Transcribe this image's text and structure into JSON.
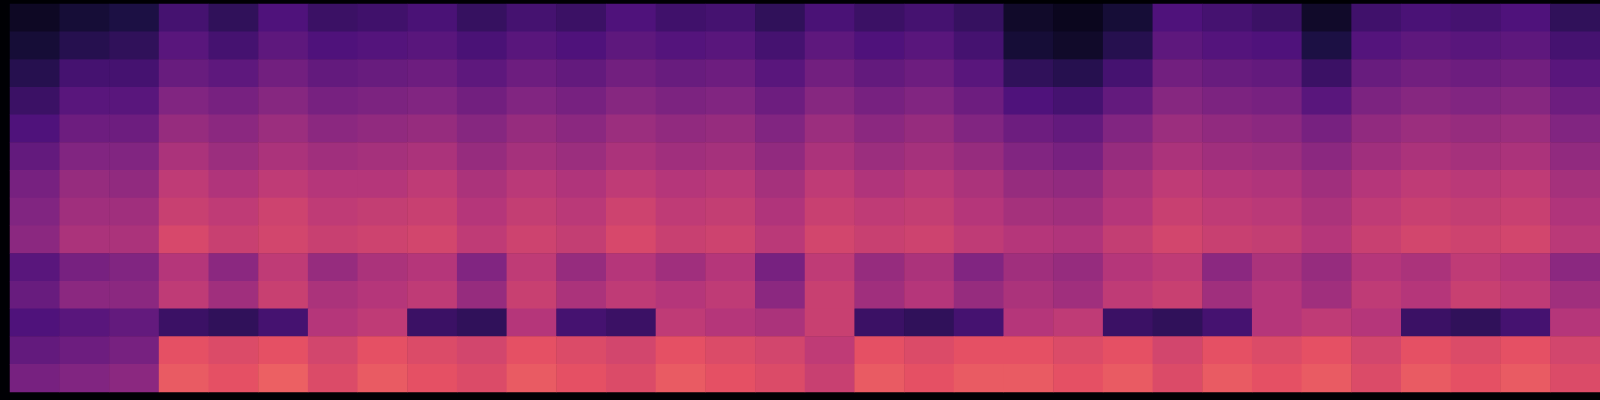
{
  "chart_data": {
    "type": "heatmap",
    "tick_labels": false,
    "color_range": [
      -80,
      0
    ],
    "cells": [
      [
        -75,
        -72,
        -70,
        -62,
        -66,
        -60,
        -64,
        -63,
        -61,
        -65,
        -62,
        -64,
        -60,
        -63,
        -62,
        -66,
        -61,
        -64,
        -62,
        -65,
        -74,
        -76,
        -72,
        -60,
        -62,
        -64,
        -74,
        -63,
        -61,
        -62,
        -60,
        -66
      ],
      [
        -72,
        -68,
        -66,
        -58,
        -62,
        -57,
        -60,
        -59,
        -58,
        -61,
        -58,
        -60,
        -57,
        -59,
        -58,
        -62,
        -57,
        -60,
        -58,
        -62,
        -72,
        -74,
        -68,
        -57,
        -59,
        -60,
        -70,
        -59,
        -57,
        -58,
        -57,
        -62
      ],
      [
        -68,
        -62,
        -62,
        -55,
        -57,
        -53,
        -56,
        -55,
        -54,
        -57,
        -54,
        -56,
        -53,
        -55,
        -54,
        -58,
        -53,
        -56,
        -54,
        -58,
        -66,
        -68,
        -62,
        -53,
        -55,
        -56,
        -64,
        -55,
        -53,
        -54,
        -53,
        -58
      ],
      [
        -64,
        -58,
        -58,
        -50,
        -52,
        -49,
        -52,
        -51,
        -50,
        -53,
        -50,
        -52,
        -49,
        -51,
        -50,
        -54,
        -49,
        -52,
        -50,
        -54,
        -60,
        -62,
        -56,
        -49,
        -51,
        -52,
        -58,
        -51,
        -49,
        -50,
        -49,
        -54
      ],
      [
        -60,
        -54,
        -54,
        -46,
        -48,
        -45,
        -48,
        -47,
        -46,
        -49,
        -46,
        -48,
        -45,
        -47,
        -46,
        -50,
        -45,
        -48,
        -46,
        -50,
        -54,
        -56,
        -50,
        -45,
        -47,
        -48,
        -52,
        -47,
        -45,
        -46,
        -45,
        -50
      ],
      [
        -56,
        -50,
        -50,
        -42,
        -45,
        -42,
        -44,
        -43,
        -42,
        -46,
        -43,
        -45,
        -42,
        -44,
        -43,
        -47,
        -42,
        -45,
        -43,
        -46,
        -50,
        -52,
        -46,
        -42,
        -44,
        -45,
        -48,
        -44,
        -42,
        -43,
        -42,
        -47
      ],
      [
        -52,
        -46,
        -47,
        -38,
        -41,
        -38,
        -40,
        -40,
        -38,
        -42,
        -39,
        -41,
        -38,
        -40,
        -39,
        -43,
        -38,
        -41,
        -39,
        -42,
        -46,
        -47,
        -42,
        -38,
        -40,
        -41,
        -44,
        -40,
        -38,
        -39,
        -38,
        -43
      ],
      [
        -50,
        -44,
        -44,
        -36,
        -38,
        -35,
        -38,
        -37,
        -36,
        -40,
        -37,
        -39,
        -35,
        -38,
        -37,
        -41,
        -36,
        -38,
        -37,
        -40,
        -43,
        -44,
        -40,
        -36,
        -38,
        -39,
        -42,
        -38,
        -36,
        -37,
        -36,
        -41
      ],
      [
        -48,
        -42,
        -42,
        -33,
        -36,
        -34,
        -36,
        -35,
        -34,
        -38,
        -35,
        -37,
        -33,
        -36,
        -35,
        -39,
        -34,
        -36,
        -35,
        -38,
        -40,
        -41,
        -37,
        -34,
        -36,
        -37,
        -40,
        -36,
        -34,
        -35,
        -34,
        -39
      ],
      [
        -58,
        -52,
        -50,
        -40,
        -48,
        -38,
        -46,
        -42,
        -40,
        -50,
        -38,
        -46,
        -40,
        -44,
        -40,
        -52,
        -38,
        -46,
        -42,
        -50,
        -44,
        -46,
        -40,
        -38,
        -48,
        -42,
        -46,
        -40,
        -42,
        -38,
        -40,
        -48
      ],
      [
        -55,
        -48,
        -48,
        -38,
        -44,
        -36,
        -42,
        -40,
        -38,
        -46,
        -36,
        -42,
        -38,
        -40,
        -38,
        -48,
        -36,
        -44,
        -40,
        -46,
        -42,
        -44,
        -38,
        -36,
        -44,
        -40,
        -44,
        -38,
        -40,
        -36,
        -38,
        -44
      ],
      [
        -60,
        -58,
        -56,
        -64,
        -66,
        -62,
        -40,
        -38,
        -64,
        -66,
        -40,
        -62,
        -64,
        -38,
        -40,
        -42,
        -36,
        -64,
        -66,
        -62,
        -40,
        -38,
        -64,
        -66,
        -62,
        -40,
        -38,
        -40,
        -64,
        -66,
        -62,
        -40
      ],
      [
        -56,
        -54,
        -52,
        -30,
        -32,
        -30,
        -34,
        -30,
        -32,
        -34,
        -30,
        -32,
        -34,
        -30,
        -32,
        -34,
        -38,
        -30,
        -32,
        -30,
        -30,
        -32,
        -30,
        -34,
        -30,
        -32,
        -30,
        -34,
        -30,
        -32,
        -30,
        -34
      ],
      [
        -52,
        -50,
        -48,
        -28,
        -30,
        -27,
        -32,
        -28,
        -30,
        -32,
        -28,
        -30,
        -32,
        -28,
        -30,
        -32,
        -36,
        -28,
        -30,
        -28,
        -28,
        -30,
        -28,
        -32,
        -28,
        -30,
        -28,
        -32,
        -28,
        -30,
        -28,
        -32
      ]
    ]
  }
}
